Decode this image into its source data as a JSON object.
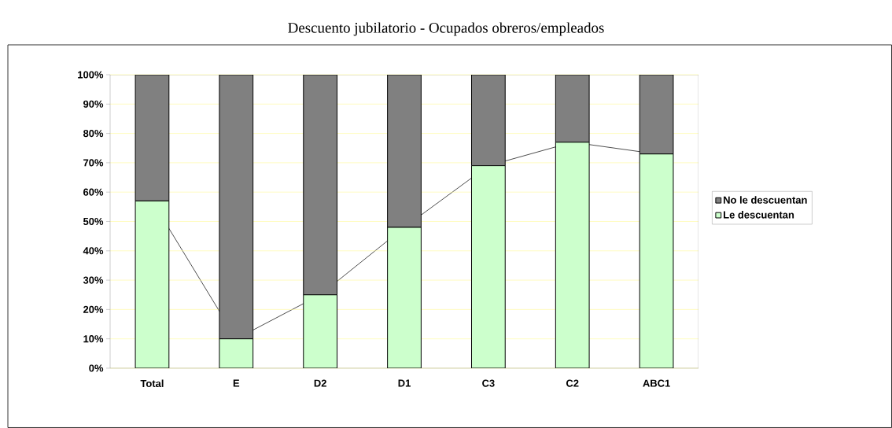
{
  "chart_data": {
    "type": "bar",
    "stacked": true,
    "title": "Descuento jubilatorio  - Ocupados obreros/empleados",
    "categories": [
      "Total",
      "E",
      "D2",
      "D1",
      "C3",
      "C2",
      "ABC1"
    ],
    "series": [
      {
        "name": "Le descuentan",
        "color": "#ccffcc",
        "values": [
          57,
          10,
          25,
          48,
          69,
          77,
          73
        ]
      },
      {
        "name": "No le descuentan",
        "color": "#808080",
        "values": [
          43,
          90,
          75,
          52,
          31,
          23,
          27
        ]
      },
      {
        "type": "line",
        "color": "#000000",
        "values": [
          57,
          10,
          25,
          48,
          69,
          77,
          73
        ]
      }
    ],
    "ylim": [
      0,
      100
    ],
    "yticks": [
      {
        "value": 0,
        "label": "0%"
      },
      {
        "value": 10,
        "label": "10%"
      },
      {
        "value": 20,
        "label": "20%"
      },
      {
        "value": 30,
        "label": "30%"
      },
      {
        "value": 40,
        "label": "40%"
      },
      {
        "value": 50,
        "label": "50%"
      },
      {
        "value": 60,
        "label": "60%"
      },
      {
        "value": 70,
        "label": "70%"
      },
      {
        "value": 80,
        "label": "80%"
      },
      {
        "value": 90,
        "label": "90%"
      },
      {
        "value": 100,
        "label": "100%"
      }
    ],
    "grid": "y",
    "legend": "right"
  }
}
